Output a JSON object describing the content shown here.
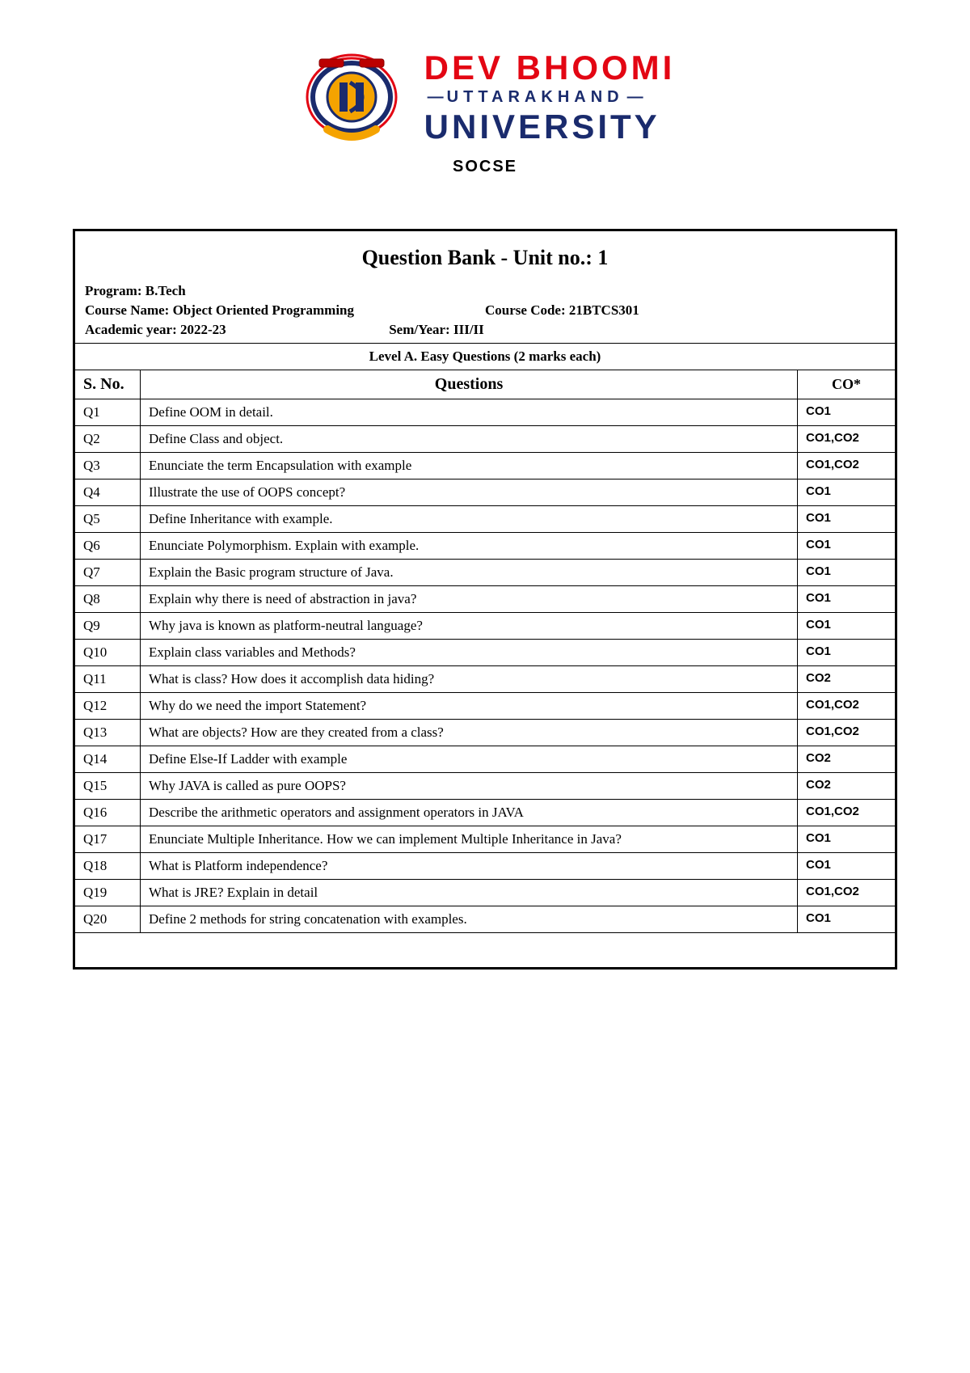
{
  "logo": {
    "top": "DEV BHOOMI",
    "mid": "UTTARAKHAND",
    "bot": "UNIVERSITY",
    "dept": "SOCSE",
    "colors": {
      "red": "#e30613",
      "blue": "#1a2b6d",
      "gold": "#f5a300"
    }
  },
  "title": "Question Bank - Unit no.: 1",
  "meta": {
    "program_label": "Program: B.Tech",
    "course_name_label": "Course Name: Object Oriented Programming",
    "course_code_label": "Course Code: 21BTCS301",
    "year_label": "Academic year:  2022-23",
    "sem_label": "Sem/Year: III/II"
  },
  "level_label": "Level A. Easy Questions (2 marks each)",
  "columns": {
    "sno": "S. No.",
    "q": "Questions",
    "co": "CO*"
  },
  "rows": [
    {
      "sno": "Q1",
      "q": "Define OOM in detail.",
      "co": "CO1"
    },
    {
      "sno": "Q2",
      "q": "Define Class and object.",
      "co": "CO1,CO2"
    },
    {
      "sno": "Q3",
      "q": "Enunciate the term Encapsulation with example",
      "co": "CO1,CO2"
    },
    {
      "sno": "Q4",
      "q": "Illustrate the use of OOPS concept?",
      "co": "CO1"
    },
    {
      "sno": "Q5",
      "q": "Define Inheritance with example.",
      "co": "CO1"
    },
    {
      "sno": "Q6",
      "q": "Enunciate Polymorphism. Explain with example.",
      "co": "CO1"
    },
    {
      "sno": "Q7",
      "q": "Explain the Basic program structure of Java.",
      "co": "CO1"
    },
    {
      "sno": "Q8",
      "q": "Explain why there is need of abstraction in java?",
      "co": "CO1"
    },
    {
      "sno": "Q9",
      "q": "Why java is known as platform-neutral language?",
      "co": "CO1"
    },
    {
      "sno": "Q10",
      "q": "Explain class variables and Methods?",
      "co": "CO1"
    },
    {
      "sno": "Q11",
      "q": "What is class? How does it accomplish data hiding?",
      "co": "CO2"
    },
    {
      "sno": "Q12",
      "q": "Why do we need the import Statement?",
      "co": "CO1,CO2"
    },
    {
      "sno": "Q13",
      "q": "What are objects? How are they created from a class?",
      "co": "CO1,CO2"
    },
    {
      "sno": "Q14",
      "q": "Define Else-If Ladder with example",
      "co": "CO2"
    },
    {
      "sno": "Q15",
      "q": "Why JAVA is called as pure OOPS?",
      "co": "CO2"
    },
    {
      "sno": "Q16",
      "q": "Describe the arithmetic operators and assignment operators in JAVA",
      "co": "CO1,CO2"
    },
    {
      "sno": "Q17",
      "q": "Enunciate Multiple Inheritance. How we can implement Multiple Inheritance in Java?",
      "co": "CO1"
    },
    {
      "sno": "Q18",
      "q": "What is Platform independence?",
      "co": "CO1"
    },
    {
      "sno": "Q19",
      "q": "What is JRE? Explain in detail",
      "co": "CO1,CO2"
    },
    {
      "sno": "Q20",
      "q": "Define 2 methods for string concatenation with examples.",
      "co": "CO1"
    }
  ]
}
